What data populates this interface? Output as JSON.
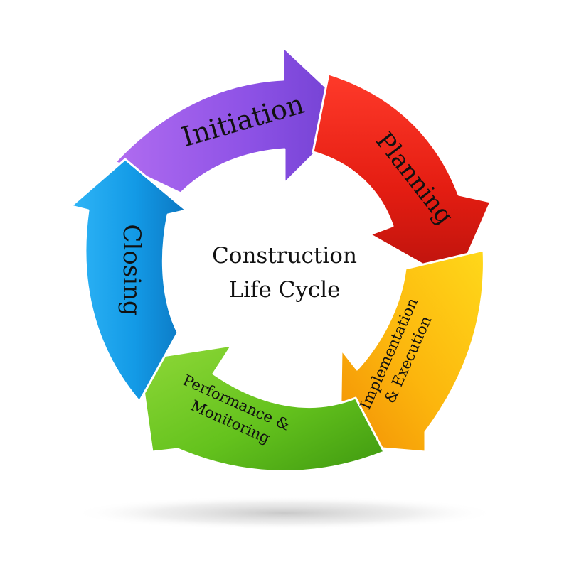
{
  "title_lines": [
    "Construction",
    "Life Cycle"
  ],
  "stages": [
    {
      "id": "initiation",
      "lines": [
        "Initiation"
      ],
      "colors": [
        "#b06cf0",
        "#8e52e6",
        "#6f3fd0"
      ]
    },
    {
      "id": "planning",
      "lines": [
        "Planning"
      ],
      "colors": [
        "#ff3a2a",
        "#e41d12",
        "#b9120c"
      ]
    },
    {
      "id": "implementation-execution",
      "lines": [
        "Implementation",
        "& Execution"
      ],
      "colors": [
        "#ffd81a",
        "#fcb60d",
        "#f28f05"
      ]
    },
    {
      "id": "performance-monitoring",
      "lines": [
        "Performance &",
        "Monitoring"
      ],
      "colors": [
        "#8fd838",
        "#64c21d",
        "#3f9910"
      ]
    },
    {
      "id": "closing",
      "lines": [
        "Closing"
      ],
      "colors": [
        "#2fb5f7",
        "#139ae6",
        "#0c77c2"
      ]
    }
  ]
}
